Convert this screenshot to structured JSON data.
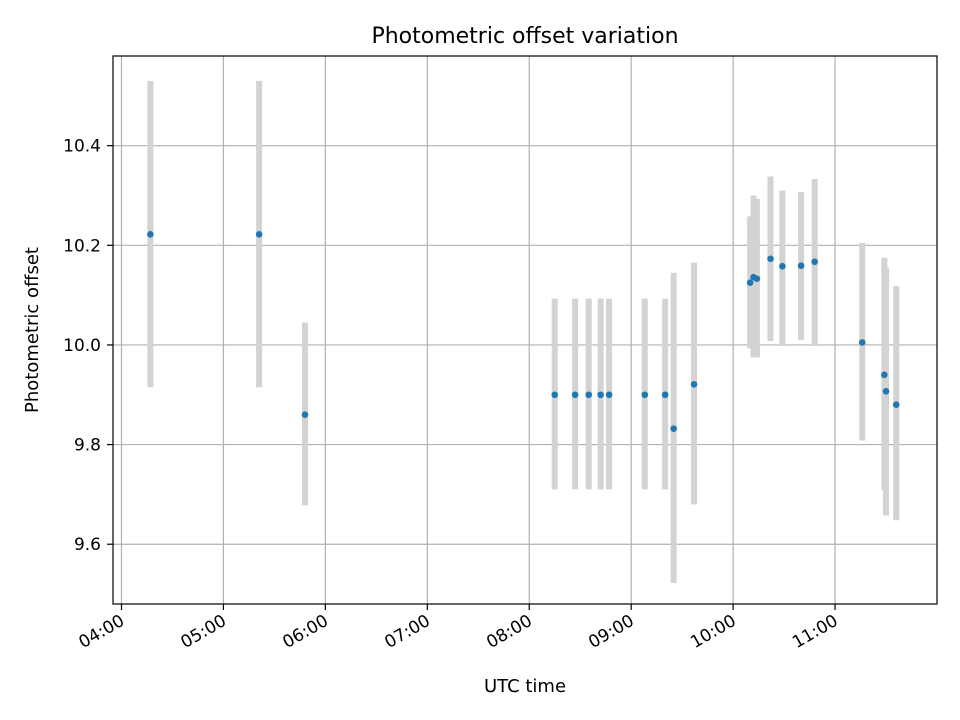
{
  "chart_data": {
    "type": "scatter",
    "title": "Photometric offset variation",
    "xlabel": "UTC time",
    "ylabel": "Photometric offset",
    "x_ticks": [
      "04:00",
      "05:00",
      "06:00",
      "07:00",
      "08:00",
      "09:00",
      "10:00",
      "11:00"
    ],
    "y_ticks": [
      "9.6",
      "9.8",
      "10.0",
      "10.2",
      "10.4"
    ],
    "xlim": [
      "03:55",
      "12:00"
    ],
    "ylim": [
      9.48,
      10.58
    ],
    "grid": true,
    "point_color": "#1f77b4",
    "errorbar_color": "#d3d3d3",
    "points": [
      {
        "t": "04:17",
        "y": 10.222,
        "lo": 9.915,
        "hi": 10.53
      },
      {
        "t": "05:21",
        "y": 10.222,
        "lo": 9.915,
        "hi": 10.53
      },
      {
        "t": "05:48",
        "y": 9.86,
        "lo": 9.678,
        "hi": 10.045
      },
      {
        "t": "08:15",
        "y": 9.9,
        "lo": 9.71,
        "hi": 10.093
      },
      {
        "t": "08:27",
        "y": 9.9,
        "lo": 9.71,
        "hi": 10.093
      },
      {
        "t": "08:35",
        "y": 9.9,
        "lo": 9.71,
        "hi": 10.093
      },
      {
        "t": "08:42",
        "y": 9.9,
        "lo": 9.71,
        "hi": 10.093
      },
      {
        "t": "08:47",
        "y": 9.9,
        "lo": 9.71,
        "hi": 10.093
      },
      {
        "t": "09:08",
        "y": 9.9,
        "lo": 9.71,
        "hi": 10.093
      },
      {
        "t": "09:20",
        "y": 9.9,
        "lo": 9.71,
        "hi": 10.093
      },
      {
        "t": "09:25",
        "y": 9.832,
        "lo": 9.522,
        "hi": 10.145
      },
      {
        "t": "09:37",
        "y": 9.921,
        "lo": 9.68,
        "hi": 10.165
      },
      {
        "t": "10:10",
        "y": 10.125,
        "lo": 9.993,
        "hi": 10.258
      },
      {
        "t": "10:12",
        "y": 10.136,
        "lo": 9.975,
        "hi": 10.3
      },
      {
        "t": "10:14",
        "y": 10.133,
        "lo": 9.975,
        "hi": 10.293
      },
      {
        "t": "10:22",
        "y": 10.173,
        "lo": 10.008,
        "hi": 10.338
      },
      {
        "t": "10:29",
        "y": 10.158,
        "lo": 10.0,
        "hi": 10.31
      },
      {
        "t": "10:40",
        "y": 10.159,
        "lo": 10.01,
        "hi": 10.307
      },
      {
        "t": "10:48",
        "y": 10.167,
        "lo": 10.0,
        "hi": 10.333
      },
      {
        "t": "11:16",
        "y": 10.005,
        "lo": 9.808,
        "hi": 10.205
      },
      {
        "t": "11:29",
        "y": 9.94,
        "lo": 9.708,
        "hi": 10.175
      },
      {
        "t": "11:30",
        "y": 9.907,
        "lo": 9.658,
        "hi": 10.155
      },
      {
        "t": "11:36",
        "y": 9.88,
        "lo": 9.648,
        "hi": 10.118
      }
    ]
  }
}
